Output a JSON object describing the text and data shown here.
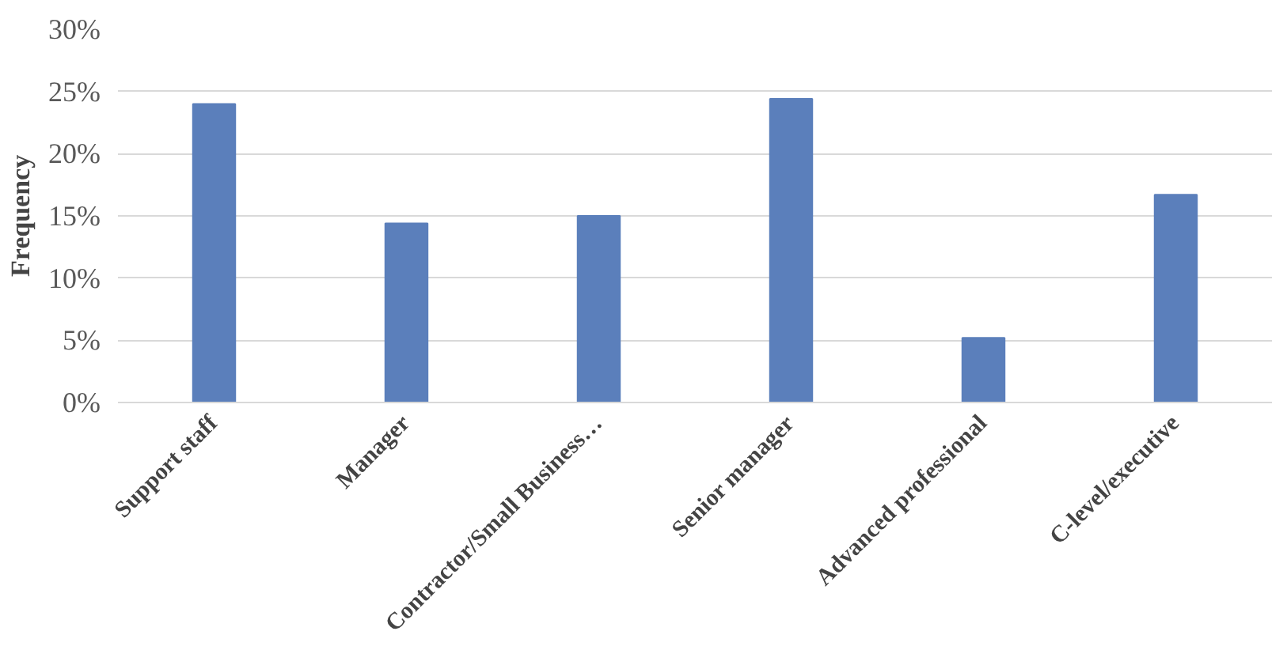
{
  "chart_data": {
    "type": "bar",
    "ylabel": "Frequency",
    "categories": [
      "Support staff",
      "Manager",
      "Contractor/Small Business…",
      "Senior manager",
      "Advanced professional",
      "C-level/executive"
    ],
    "values": [
      24.0,
      14.4,
      15.0,
      24.4,
      5.2,
      16.7
    ],
    "color": "#5b7fbb",
    "ylim": [
      0,
      30
    ],
    "yticks": [
      {
        "value": 0,
        "label": "0%"
      },
      {
        "value": 5,
        "label": "5%"
      },
      {
        "value": 10,
        "label": "10%"
      },
      {
        "value": 15,
        "label": "15%"
      },
      {
        "value": 20,
        "label": "20%"
      },
      {
        "value": 25,
        "label": "25%"
      },
      {
        "value": 30,
        "label": "30%"
      }
    ],
    "grid": "y"
  }
}
